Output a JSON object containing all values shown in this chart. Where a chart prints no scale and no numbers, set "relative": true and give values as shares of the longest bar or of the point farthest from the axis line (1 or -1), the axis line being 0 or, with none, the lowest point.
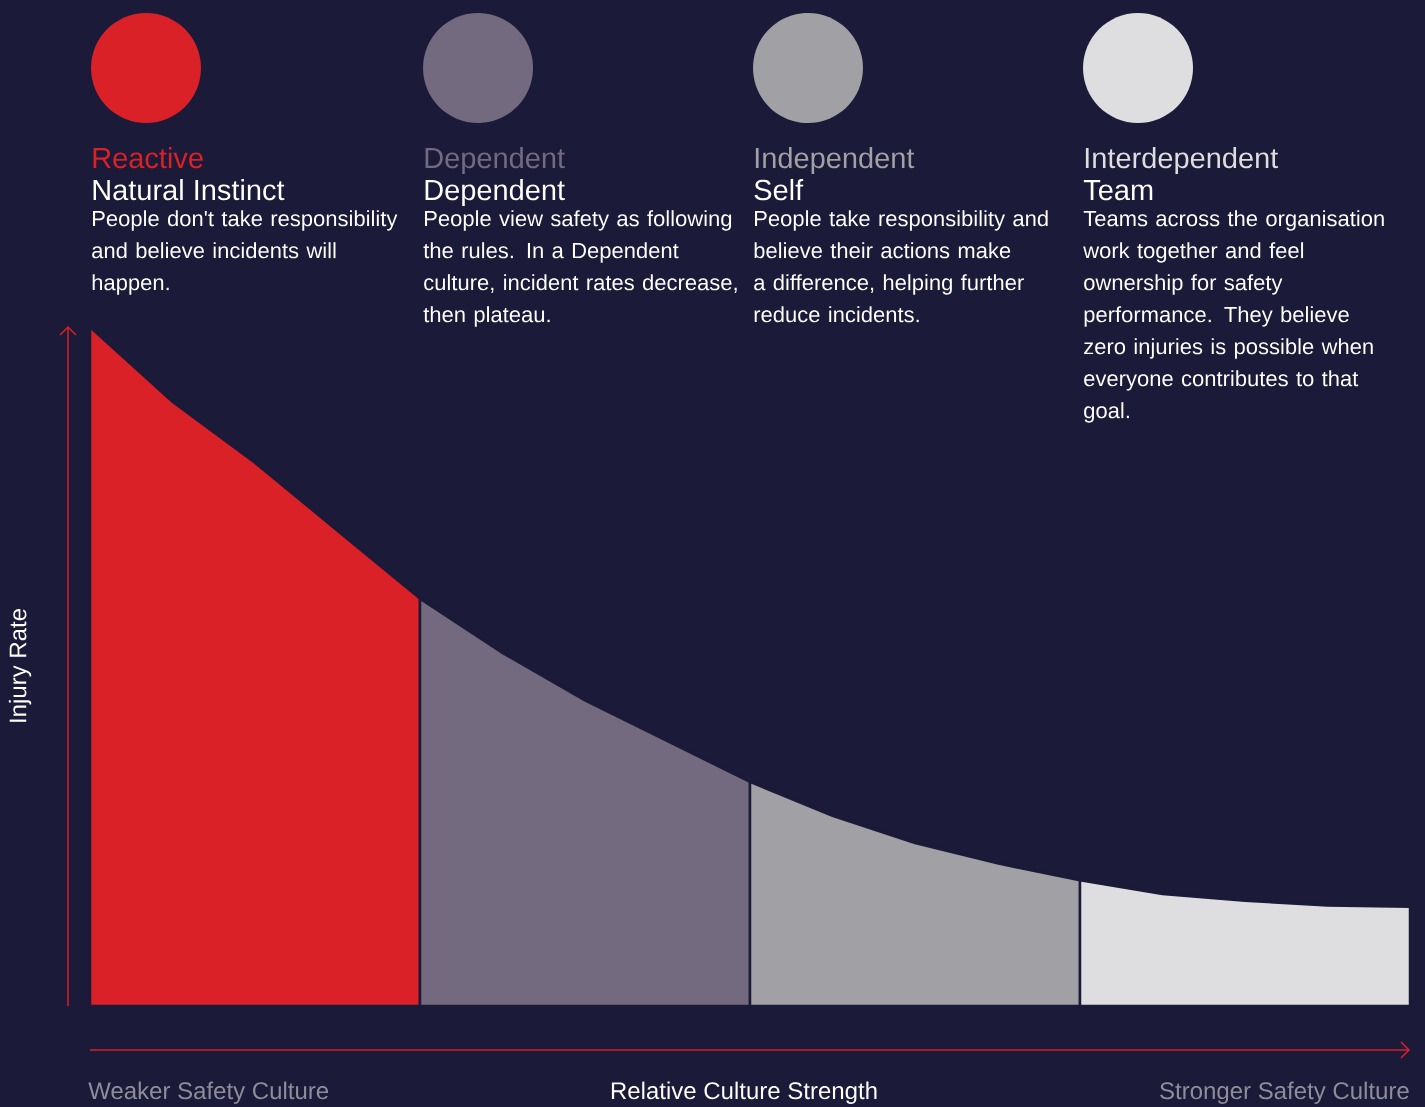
{
  "chart_data": {
    "type": "area",
    "relative": true,
    "xlabel": "Relative Culture Strength",
    "ylabel": "Injury Rate",
    "categories": [
      null,
      null,
      null,
      null,
      null,
      null,
      null,
      null,
      null,
      null,
      null,
      null,
      null,
      null,
      null,
      null,
      null
    ],
    "series": [
      {
        "name": "Reactive",
        "color": "#da2128",
        "values": [
          1.0,
          0.89,
          0.8,
          0.7,
          0.6,
          null,
          null,
          null,
          null,
          null,
          null,
          null,
          null,
          null,
          null,
          null,
          null
        ]
      },
      {
        "name": "Dependent",
        "color": "#736a80",
        "values": [
          null,
          null,
          null,
          null,
          0.6,
          0.52,
          0.45,
          0.39,
          0.33,
          null,
          null,
          null,
          null,
          null,
          null,
          null,
          null
        ]
      },
      {
        "name": "Independent",
        "color": "#a0a0a5",
        "values": [
          null,
          null,
          null,
          null,
          null,
          null,
          null,
          null,
          0.33,
          0.28,
          0.24,
          0.21,
          0.185,
          null,
          null,
          null,
          null
        ]
      },
      {
        "name": "Interdependent",
        "color": "#dedee0",
        "values": [
          null,
          null,
          null,
          null,
          null,
          null,
          null,
          null,
          null,
          null,
          null,
          null,
          0.185,
          0.165,
          0.155,
          0.148,
          0.146
        ]
      }
    ],
    "annotations": [
      "Natural Instinct",
      "People don't take responsibility and believe incidents will happen.",
      "Dependent",
      "People view safety as following the rules. In a Dependent culture, incident rates decrease, then plateau.",
      "Self",
      "People take responsibility and believe their actions make a difference, helping further reduce incidents.",
      "Team",
      "Teams across the organisation work together and feel ownership for safety performance. They believe zero injuries is possible when everyone contributes to that goal.",
      "Weaker Safety Culture",
      "Stronger Safety Culture"
    ]
  }
}
